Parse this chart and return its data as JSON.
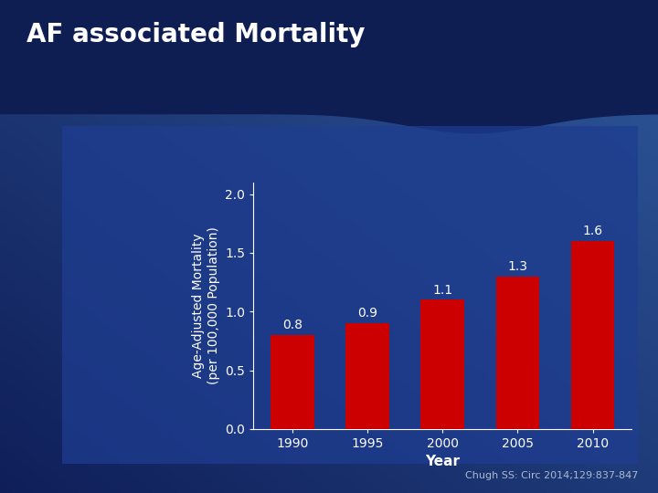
{
  "title": "AF associated Mortality",
  "categories": [
    "1990",
    "1995",
    "2000",
    "2005",
    "2010"
  ],
  "values": [
    0.8,
    0.9,
    1.1,
    1.3,
    1.6
  ],
  "bar_color": "#cc0000",
  "xlabel": "Year",
  "ylabel": "Age-Adjusted Mortality\n(per 100,000 Population)",
  "ylim": [
    0,
    2.1
  ],
  "yticks": [
    0,
    0.5,
    1,
    1.5,
    2
  ],
  "bg_color_top": "#1a2f6e",
  "bg_color_bottom": "#0d1f5c",
  "panel_face": "#1a3585",
  "panel_edge": "#2a4a99",
  "title_color": "#ffffff",
  "axis_text_color": "#ffffff",
  "bar_label_color": "#ffffff",
  "citation": "Chugh SS: Circ 2014;129:837-847",
  "title_fontsize": 20,
  "axis_label_fontsize": 10,
  "tick_fontsize": 10,
  "bar_label_fontsize": 10,
  "citation_fontsize": 8,
  "header_dark": "#0f1f55",
  "header_mid": "#1a3080"
}
